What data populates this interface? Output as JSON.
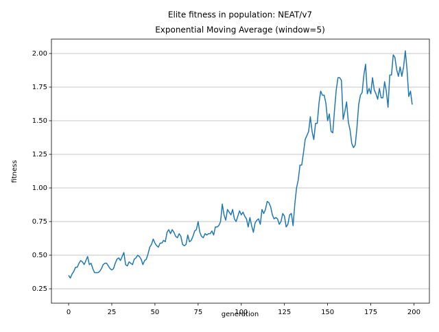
{
  "chart_data": {
    "type": "line",
    "title": "Elite fitness in population: NEAT/v7",
    "subtitle": "Exponential Moving Average (window=5)",
    "x_label": "generation",
    "y_label": "fitness",
    "x": [
      0,
      1,
      2,
      3,
      4,
      5,
      6,
      7,
      8,
      9,
      10,
      11,
      12,
      13,
      14,
      15,
      16,
      17,
      18,
      19,
      20,
      21,
      22,
      23,
      24,
      25,
      26,
      27,
      28,
      29,
      30,
      31,
      32,
      33,
      34,
      35,
      36,
      37,
      38,
      39,
      40,
      41,
      42,
      43,
      44,
      45,
      46,
      47,
      48,
      49,
      50,
      51,
      52,
      53,
      54,
      55,
      56,
      57,
      58,
      59,
      60,
      61,
      62,
      63,
      64,
      65,
      66,
      67,
      68,
      69,
      70,
      71,
      72,
      73,
      74,
      75,
      76,
      77,
      78,
      79,
      80,
      81,
      82,
      83,
      84,
      85,
      86,
      87,
      88,
      89,
      90,
      91,
      92,
      93,
      94,
      95,
      96,
      97,
      98,
      99,
      100,
      101,
      102,
      103,
      104,
      105,
      106,
      107,
      108,
      109,
      110,
      111,
      112,
      113,
      114,
      115,
      116,
      117,
      118,
      119,
      120,
      121,
      122,
      123,
      124,
      125,
      126,
      127,
      128,
      129,
      130,
      131,
      132,
      133,
      134,
      135,
      136,
      137,
      138,
      139,
      140,
      141,
      142,
      143,
      144,
      145,
      146,
      147,
      148,
      149,
      150,
      151,
      152,
      153,
      154,
      155,
      156,
      157,
      158,
      159,
      160,
      161,
      162,
      163,
      164,
      165,
      166,
      167,
      168,
      169,
      170,
      171,
      172,
      173,
      174,
      175,
      176,
      177,
      178,
      179,
      180,
      181,
      182,
      183,
      184,
      185,
      186,
      187,
      188,
      189,
      190,
      191,
      192,
      193,
      194,
      195,
      196,
      197,
      198,
      199
    ],
    "series": [
      {
        "color": "#1f77b4",
        "values": [
          0.35,
          0.33,
          0.36,
          0.38,
          0.41,
          0.41,
          0.44,
          0.46,
          0.45,
          0.43,
          0.46,
          0.49,
          0.43,
          0.44,
          0.4,
          0.37,
          0.37,
          0.37,
          0.38,
          0.4,
          0.43,
          0.44,
          0.44,
          0.42,
          0.4,
          0.39,
          0.4,
          0.44,
          0.47,
          0.48,
          0.46,
          0.49,
          0.52,
          0.43,
          0.42,
          0.45,
          0.44,
          0.43,
          0.47,
          0.48,
          0.5,
          0.49,
          0.47,
          0.43,
          0.46,
          0.47,
          0.51,
          0.56,
          0.58,
          0.62,
          0.59,
          0.57,
          0.56,
          0.59,
          0.59,
          0.61,
          0.6,
          0.67,
          0.69,
          0.66,
          0.69,
          0.67,
          0.64,
          0.63,
          0.66,
          0.64,
          0.58,
          0.57,
          0.58,
          0.65,
          0.6,
          0.61,
          0.64,
          0.68,
          0.69,
          0.75,
          0.67,
          0.64,
          0.63,
          0.66,
          0.65,
          0.66,
          0.66,
          0.68,
          0.65,
          0.71,
          0.71,
          0.72,
          0.75,
          0.88,
          0.8,
          0.76,
          0.84,
          0.82,
          0.8,
          0.84,
          0.77,
          0.75,
          0.79,
          0.83,
          0.8,
          0.82,
          0.79,
          0.77,
          0.71,
          0.78,
          0.72,
          0.67,
          0.74,
          0.76,
          0.77,
          0.73,
          0.84,
          0.81,
          0.84,
          0.9,
          0.89,
          0.86,
          0.8,
          0.77,
          0.78,
          0.77,
          0.73,
          0.75,
          0.81,
          0.79,
          0.71,
          0.73,
          0.8,
          0.81,
          0.72,
          0.88,
          1.0,
          1.06,
          1.17,
          1.17,
          1.26,
          1.36,
          1.39,
          1.42,
          1.53,
          1.42,
          1.36,
          1.48,
          1.48,
          1.63,
          1.72,
          1.69,
          1.69,
          1.63,
          1.5,
          1.55,
          1.42,
          1.41,
          1.58,
          1.73,
          1.82,
          1.82,
          1.8,
          1.51,
          1.57,
          1.64,
          1.49,
          1.43,
          1.33,
          1.3,
          1.32,
          1.45,
          1.62,
          1.69,
          1.71,
          1.84,
          1.92,
          1.7,
          1.74,
          1.7,
          1.82,
          1.73,
          1.7,
          1.66,
          1.74,
          1.67,
          1.67,
          1.79,
          1.72,
          1.6,
          1.84,
          1.84,
          1.99,
          1.97,
          1.88,
          1.83,
          1.9,
          1.83,
          1.9,
          2.02,
          1.88,
          1.68,
          1.72,
          1.62
        ]
      }
    ],
    "xlim": [
      -9.95,
      208.95
    ],
    "ylim": [
      0.143,
      2.107
    ],
    "xticks": [
      0,
      25,
      50,
      75,
      100,
      125,
      150,
      175,
      200
    ],
    "yticks": [
      0.25,
      {
        "value": 0.5,
        "label": "0.50"
      },
      0.75,
      {
        "value": 1.0,
        "label": "1.00"
      },
      1.25,
      {
        "value": 1.5,
        "label": "1.50"
      },
      1.75,
      {
        "value": 2.0,
        "label": "2.00"
      }
    ],
    "grid": "y"
  }
}
